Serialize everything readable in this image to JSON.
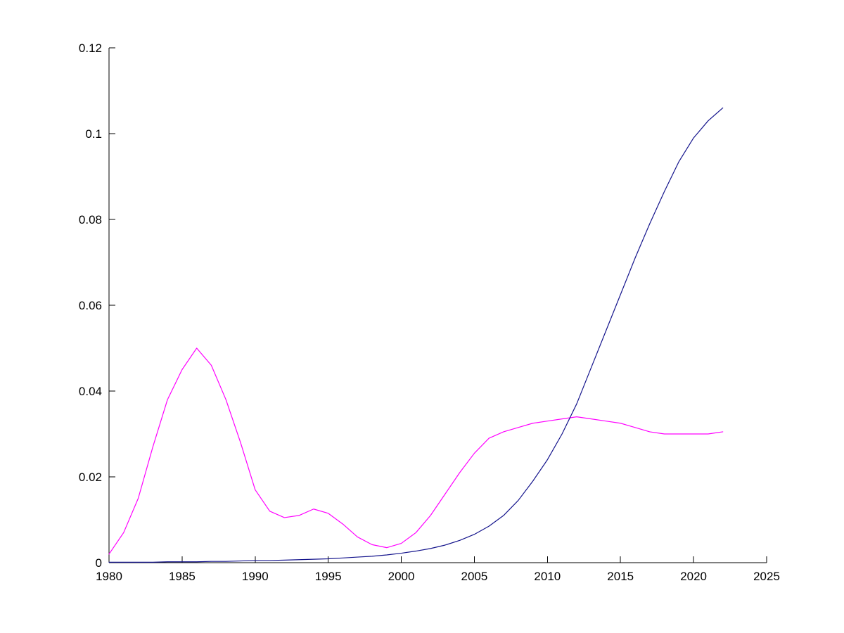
{
  "figure": {
    "background": "#ffffff",
    "title": ""
  },
  "chart_data": {
    "type": "line",
    "title": "",
    "xlabel": "",
    "ylabel": "",
    "xlim": [
      1980,
      2025
    ],
    "ylim": [
      0,
      0.12
    ],
    "x_ticks": [
      1980,
      1985,
      1990,
      1995,
      2000,
      2005,
      2010,
      2015,
      2020,
      2025
    ],
    "y_ticks": [
      0,
      0.02,
      0.04,
      0.06,
      0.08,
      0.1,
      0.12
    ],
    "y_tick_labels": [
      "0",
      "0.02",
      "0.04",
      "0.06",
      "0.08",
      "0.1",
      "0.12"
    ],
    "grid": false,
    "legend": "none",
    "axis_color": "#000000",
    "x": [
      1980,
      1981,
      1982,
      1983,
      1984,
      1985,
      1986,
      1987,
      1988,
      1989,
      1990,
      1991,
      1992,
      1993,
      1994,
      1995,
      1996,
      1997,
      1998,
      1999,
      2000,
      2001,
      2002,
      2003,
      2004,
      2005,
      2006,
      2007,
      2008,
      2009,
      2010,
      2011,
      2012,
      2013,
      2014,
      2015,
      2016,
      2017,
      2018,
      2019,
      2020,
      2021,
      2022
    ],
    "series": [
      {
        "name": "magenta-series",
        "color": "#ff00ff",
        "values": [
          0.002,
          0.007,
          0.015,
          0.027,
          0.038,
          0.045,
          0.05,
          0.046,
          0.038,
          0.028,
          0.017,
          0.012,
          0.0105,
          0.011,
          0.0125,
          0.0115,
          0.009,
          0.006,
          0.0042,
          0.0035,
          0.0045,
          0.007,
          0.011,
          0.016,
          0.021,
          0.0255,
          0.029,
          0.0305,
          0.0315,
          0.0325,
          0.033,
          0.0335,
          0.034,
          0.0335,
          0.033,
          0.0325,
          0.0315,
          0.0305,
          0.03,
          0.03,
          0.03,
          0.03,
          0.0305
        ]
      },
      {
        "name": "dark-blue-series",
        "color": "#14148c",
        "values": [
          0.0001,
          0.0001,
          0.0001,
          0.0001,
          0.0002,
          0.0002,
          0.0002,
          0.0003,
          0.0003,
          0.0004,
          0.0005,
          0.0005,
          0.0006,
          0.0007,
          0.0008,
          0.0009,
          0.0011,
          0.0013,
          0.0015,
          0.0018,
          0.0022,
          0.0027,
          0.0033,
          0.0041,
          0.0052,
          0.0066,
          0.0085,
          0.011,
          0.0145,
          0.019,
          0.024,
          0.03,
          0.037,
          0.0455,
          0.054,
          0.0625,
          0.071,
          0.079,
          0.0865,
          0.0935,
          0.099,
          0.103,
          0.106
        ]
      }
    ]
  }
}
